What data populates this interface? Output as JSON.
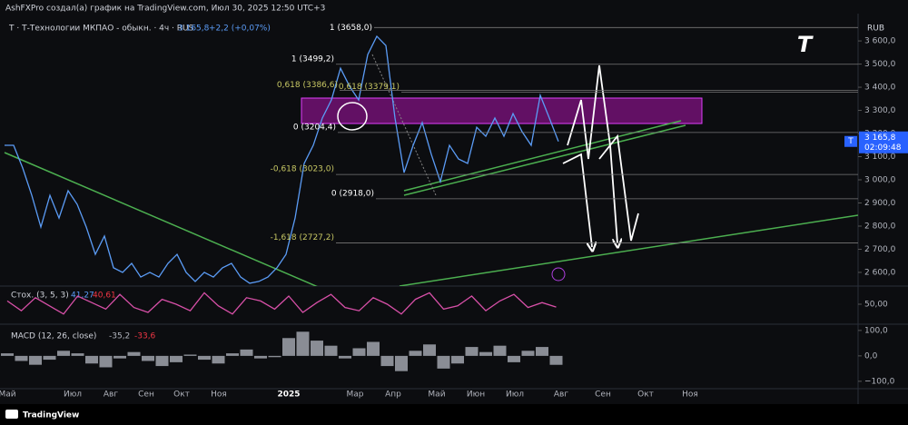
{
  "header": "AshFXPro создал(а) график на TradingView.com, Июл 30, 2025 12:50 UTC+3",
  "footer": "TradingView",
  "chart_data": [
    {
      "type": "line",
      "title": "Т · Т-Технологии МКПАО - обыкн. · 4ч · RUS",
      "change": "+2,2 (+0,07%)",
      "currency": "RUB",
      "timer": "02:09:48",
      "logo": "T",
      "last_price": {
        "value": 3165.8,
        "label": "3 165,8"
      },
      "color": "#5b9cf6",
      "values": [
        3149,
        3149,
        3051,
        2933,
        2796,
        2933,
        2835,
        2953,
        2894,
        2796,
        2678,
        2757,
        2620,
        2600,
        2639,
        2580,
        2600,
        2580,
        2639,
        2678,
        2600,
        2561,
        2600,
        2580,
        2620,
        2639,
        2580,
        2553,
        2561,
        2580,
        2620,
        2678,
        2835,
        3071,
        3149,
        3267,
        3345,
        3482,
        3404,
        3345,
        3541,
        3620,
        3580,
        3267,
        3031,
        3149,
        3247,
        3110,
        2992,
        3149,
        3090,
        3071,
        3227,
        3188,
        3267,
        3188,
        3286,
        3208,
        3149,
        3365,
        3267,
        3165.8
      ],
      "ylim": [
        2541,
        3718
      ],
      "yticks": [
        {
          "value": 3600,
          "label": "3 600,0"
        },
        {
          "value": 3500,
          "label": "3 500,0"
        },
        {
          "value": 3400,
          "label": "3 400,0"
        },
        {
          "value": 3300,
          "label": "3 300,0"
        },
        {
          "value": 3200,
          "label": "3 200,0"
        },
        {
          "value": 3100,
          "label": "3 100,0"
        },
        {
          "value": 3000,
          "label": "3 000,0"
        },
        {
          "value": 2900,
          "label": "2 900,0"
        },
        {
          "value": 2800,
          "label": "2 800,0"
        },
        {
          "value": 2700,
          "label": "2 700,0"
        },
        {
          "value": 2600,
          "label": "2 600,0"
        }
      ],
      "x_axis_labels": [
        "Май",
        null,
        "Июл",
        "Авг",
        "Сен",
        "Окт",
        "Ноя",
        null,
        "2025",
        null,
        "Мар",
        "Апр",
        "Май",
        "Июн",
        "Июл",
        "Авг",
        "Сен",
        "Окт",
        "Ноя"
      ],
      "annotations": [
        {
          "label": "1 (3658,0)",
          "value": 3658
        },
        {
          "label": "1 (3499,2)",
          "value": 3499.2
        },
        {
          "label": "0,618 (3386,6)",
          "value": 3386.6
        },
        {
          "label": "0,618 (3379,1)",
          "value": 3379.1
        },
        {
          "label": "0 (3204,4)",
          "value": 3204.4
        },
        {
          "label": "-0,618 (3023,0)",
          "value": 3023
        },
        {
          "label": "0 (2918,0)",
          "value": 2918
        },
        {
          "label": "-1,618 (2727,2)",
          "value": 2727.2
        }
      ]
    },
    {
      "type": "line",
      "title": "Стох. (3, 5, 3)",
      "legend_values": [
        "41,27",
        "40,61"
      ],
      "color": "#d850a8",
      "values": [
        60,
        30,
        70,
        45,
        20,
        75,
        55,
        35,
        80,
        40,
        25,
        65,
        50,
        30,
        85,
        45,
        20,
        70,
        60,
        35,
        75,
        25,
        55,
        80,
        40,
        30,
        70,
        50,
        20,
        65,
        85,
        35,
        45,
        75,
        30,
        60,
        80,
        40,
        55,
        41.27
      ],
      "ylim": [
        0,
        100
      ],
      "yticks": [
        {
          "value": 50,
          "label": "50,00"
        }
      ]
    },
    {
      "type": "bar",
      "title": "MACD (12, 26, close)",
      "legend_values": [
        "-35,2",
        "-33,6"
      ],
      "color": "#8a8d95",
      "values": [
        10,
        -20,
        -35,
        -15,
        20,
        10,
        -30,
        -45,
        -10,
        15,
        -20,
        -40,
        -25,
        5,
        -15,
        -30,
        10,
        25,
        -10,
        -5,
        70,
        95,
        60,
        40,
        -10,
        30,
        55,
        -40,
        -60,
        20,
        45,
        -50,
        -30,
        35,
        15,
        40,
        -25,
        20,
        35,
        -35.2
      ],
      "ylim": [
        -129,
        121
      ],
      "yticks": [
        {
          "value": 100,
          "label": "100,0"
        },
        {
          "value": 0,
          "label": "0,0"
        },
        {
          "value": -100,
          "label": "−100,0"
        }
      ]
    }
  ]
}
